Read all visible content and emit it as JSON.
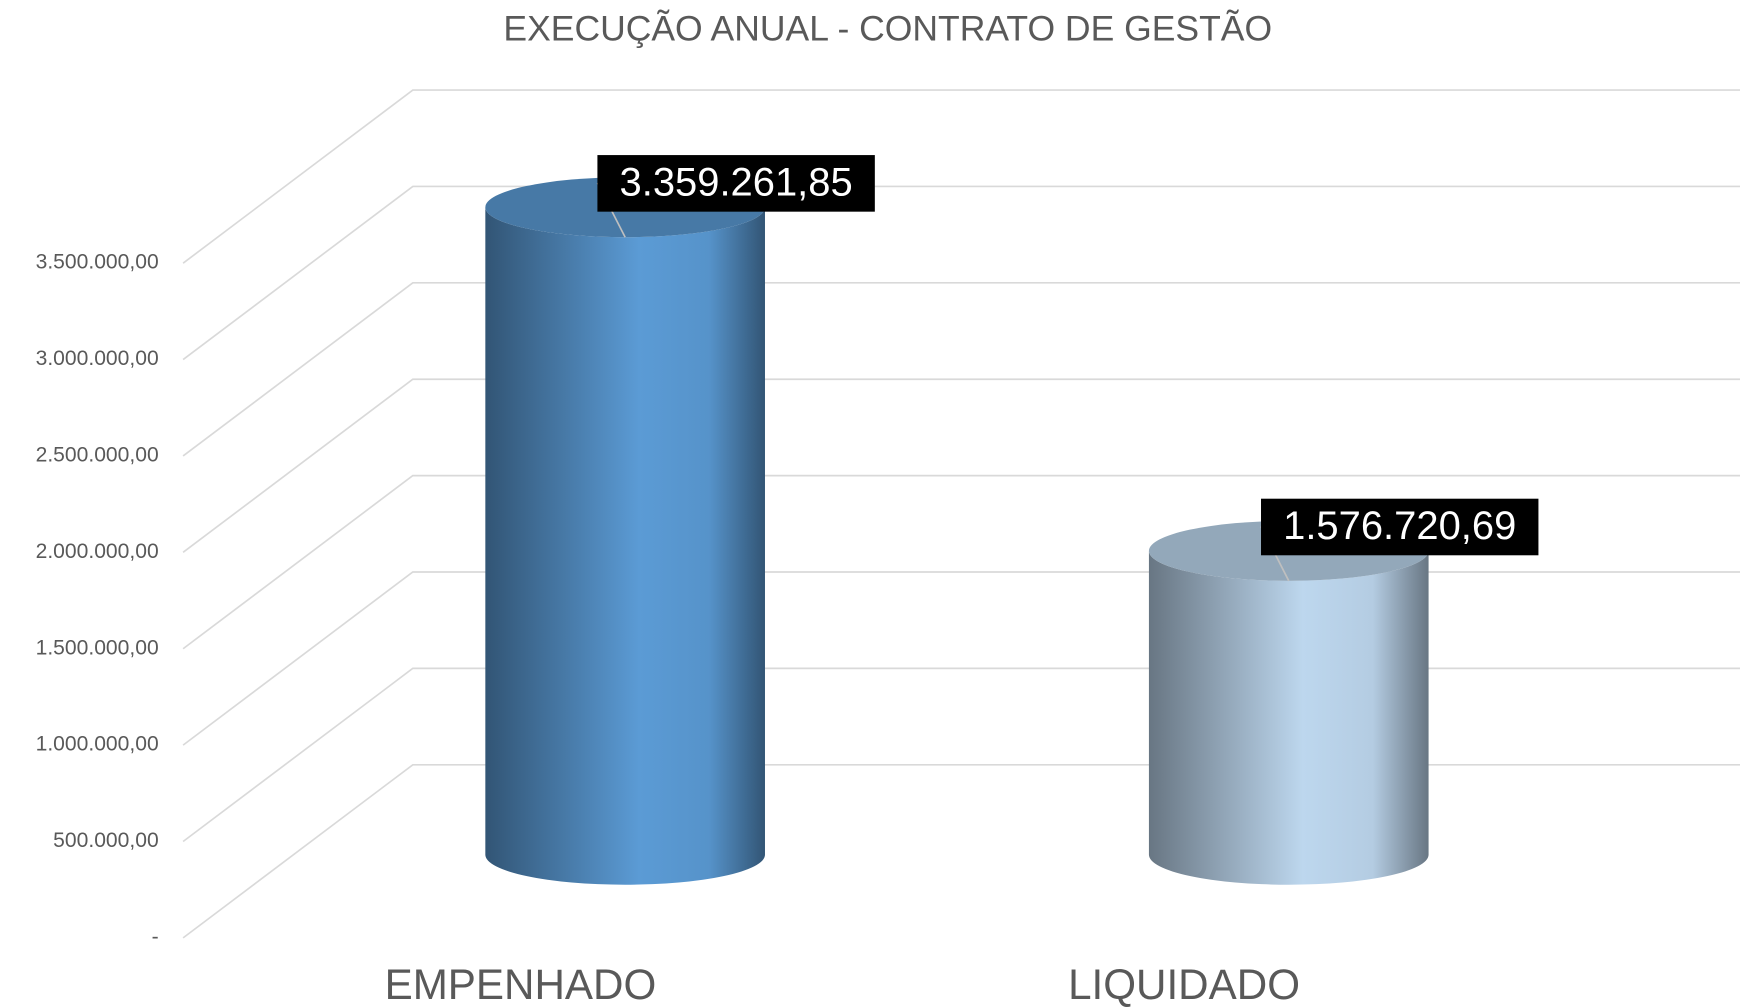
{
  "chart_data": {
    "type": "bar3d",
    "title": "EXECUÇÃO ANUAL - CONTRATO DE GESTÃO",
    "categories": [
      "EMPENHADO",
      "LIQUIDADO"
    ],
    "values": [
      3359261.85,
      1576720.69
    ],
    "value_labels": [
      "3.359.261,85",
      "1.576.720,69"
    ],
    "colors": [
      "#5b9bd5",
      "#bdd7ee"
    ],
    "ylim": [
      0,
      3500000
    ],
    "yticks": [
      {
        "value": 0,
        "label": "-"
      },
      {
        "value": 500000,
        "label": "500.000,00"
      },
      {
        "value": 1000000,
        "label": "1.000.000,00"
      },
      {
        "value": 1500000,
        "label": "1.500.000,00"
      },
      {
        "value": 2000000,
        "label": "2.000.000,00"
      },
      {
        "value": 2500000,
        "label": "2.500.000,00"
      },
      {
        "value": 3000000,
        "label": "3.000.000,00"
      },
      {
        "value": 3500000,
        "label": "3.500.000,00"
      }
    ],
    "grid": true
  }
}
